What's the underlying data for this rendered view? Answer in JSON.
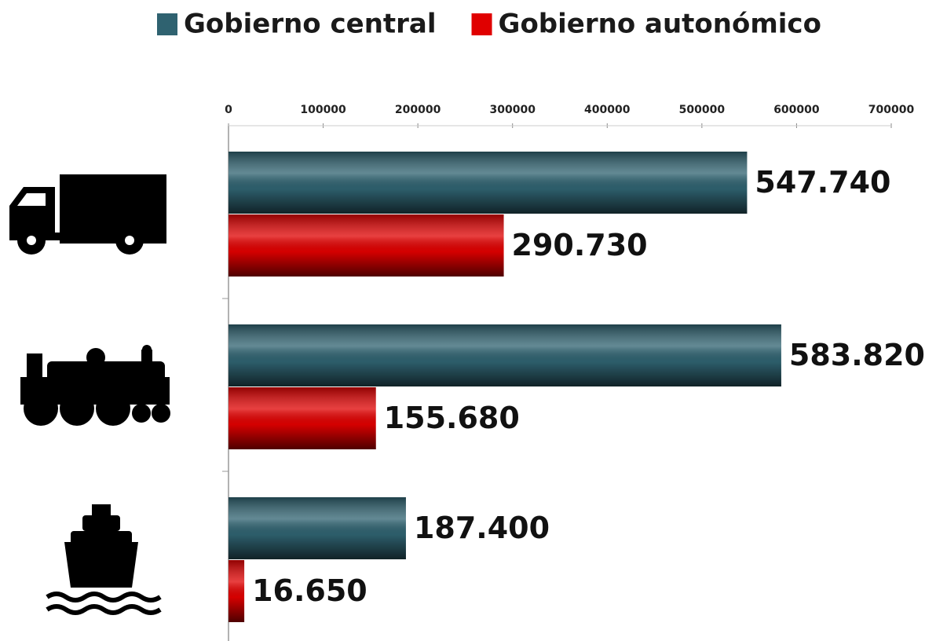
{
  "chart_data": {
    "type": "bar",
    "orientation": "horizontal",
    "categories": [
      null,
      null,
      null
    ],
    "series": [
      {
        "name": "Gobierno central",
        "color": "#2f6270",
        "values": [
          547740,
          583820,
          187400
        ],
        "value_labels": [
          "547.740",
          "583.820",
          "187.400"
        ]
      },
      {
        "name": "Gobierno autonómico",
        "color": "#e00000",
        "values": [
          290730,
          155680,
          16650
        ],
        "value_labels": [
          "290.730",
          "155.680",
          "16.650"
        ]
      }
    ],
    "xlim": [
      0,
      700000
    ],
    "xticks": [
      0,
      100000,
      200000,
      300000,
      400000,
      500000,
      600000,
      700000
    ],
    "legend": "top"
  }
}
